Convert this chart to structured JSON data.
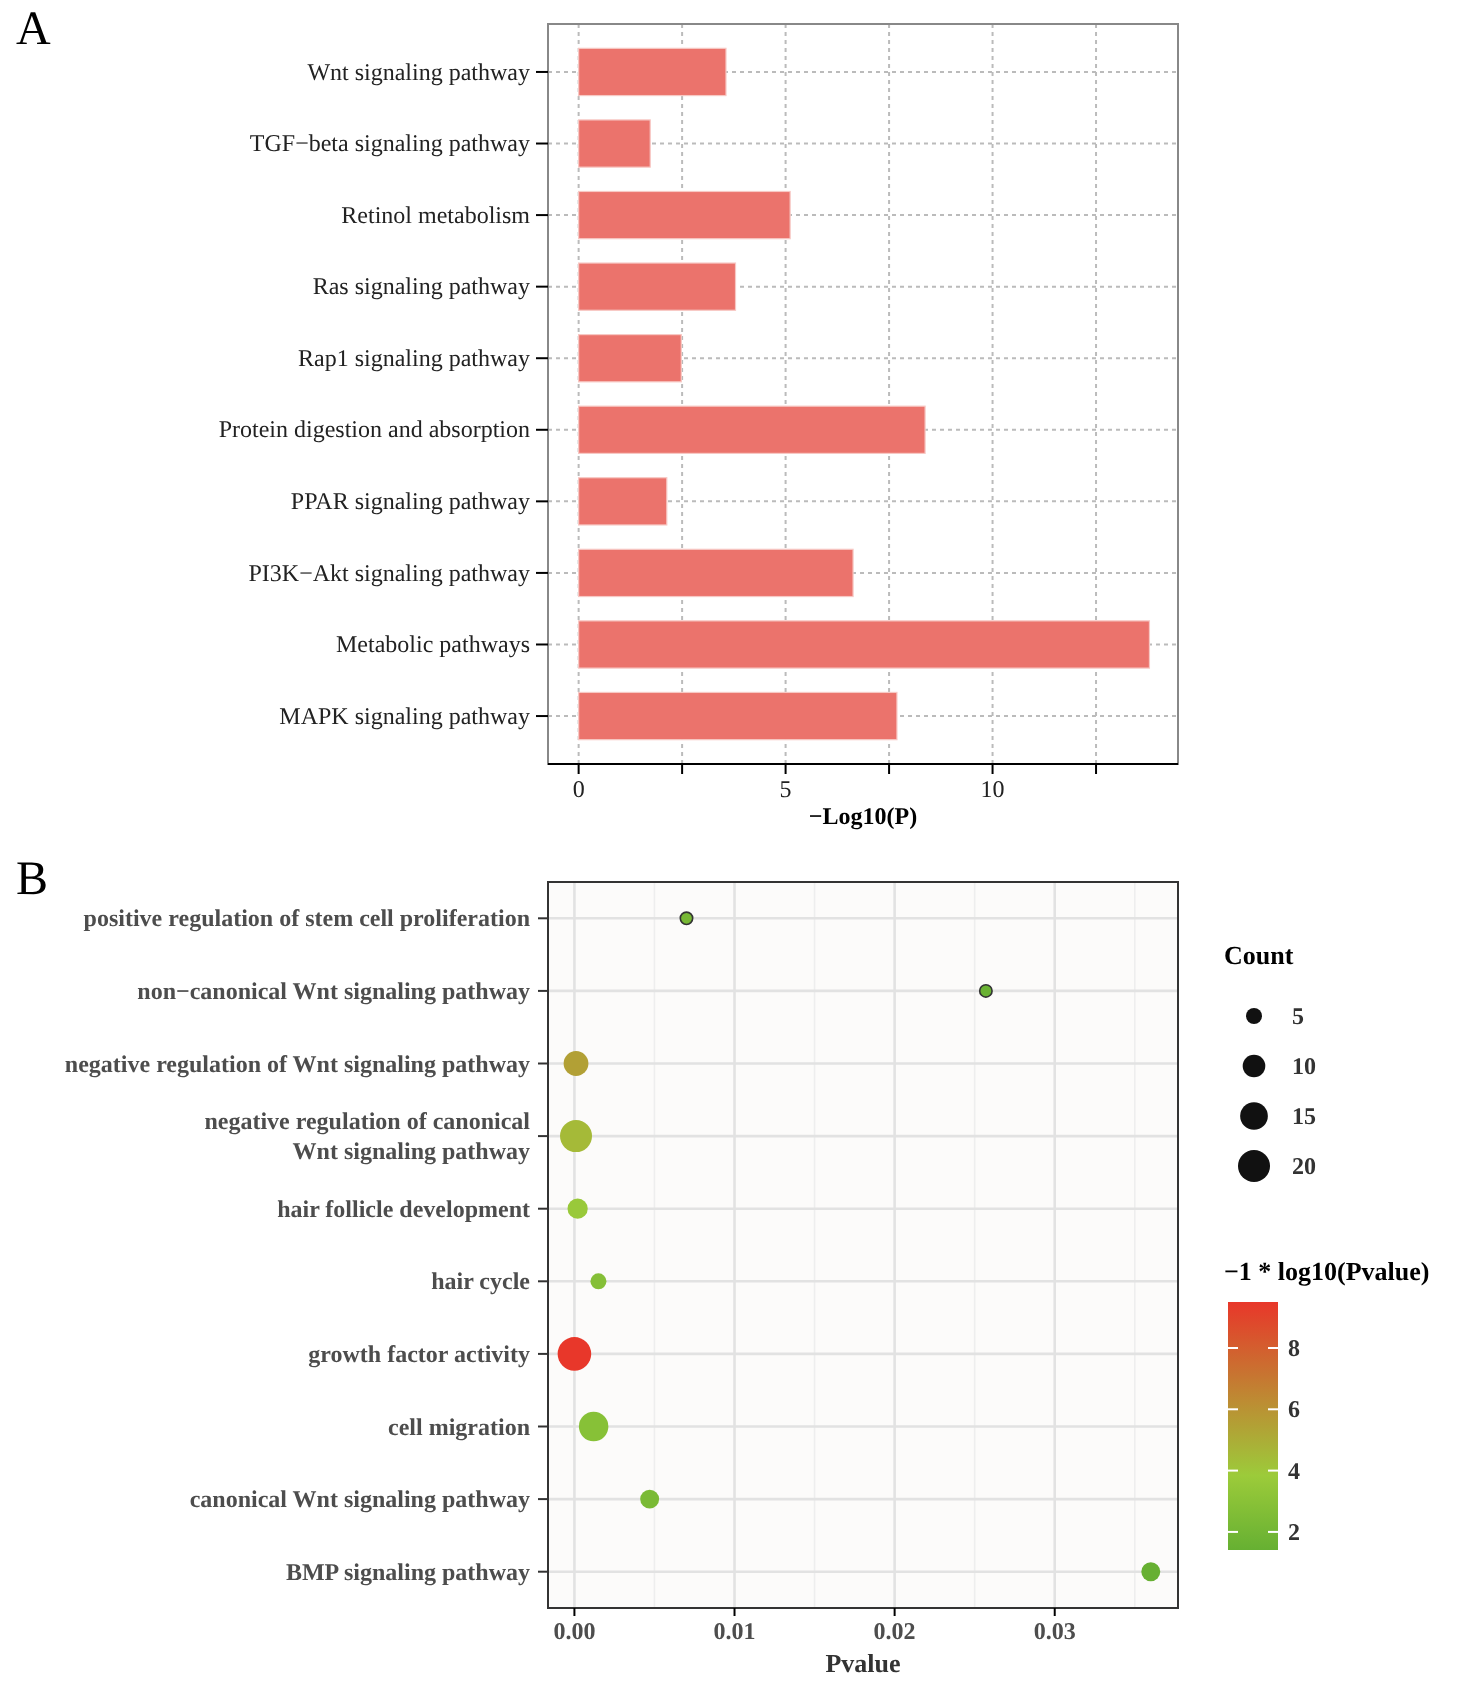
{
  "chart_data": [
    {
      "type": "bar",
      "orientation": "horizontal",
      "title": "A",
      "xlabel": "−Log10(P)",
      "categories": [
        "Wnt signaling pathway",
        "TGF−beta signaling pathway",
        "Retinol metabolism",
        "Ras signaling pathway",
        "Rap1 signaling pathway",
        "Protein digestion and absorption",
        "PPAR signaling pathway",
        "PI3K−Akt signaling pathway",
        "Metabolic pathways",
        "MAPK signaling pathway"
      ],
      "values": [
        3.56,
        1.73,
        5.11,
        3.79,
        2.48,
        8.37,
        2.13,
        6.63,
        13.79,
        7.69
      ],
      "color": "#eb736c",
      "xlim": [
        -0.74,
        14.48
      ],
      "xticks": [
        0,
        {
          "value": 2.5,
          "label": null
        },
        5,
        {
          "value": 7.5,
          "label": null
        },
        10,
        {
          "value": 12.5,
          "label": null
        }
      ],
      "grid": true,
      "line_style": "dotted"
    },
    {
      "type": "bubble",
      "title": "B",
      "xlabel": "Pvalue",
      "legend_title": "Count",
      "clabel": "−1 * log10(Pvalue)",
      "categories": [
        "positive regulation of stem cell proliferation",
        "non−canonical Wnt signaling pathway",
        "negative regulation of Wnt signaling pathway",
        "negative regulation of canonical\nWnt signaling pathway",
        "hair follicle development",
        "hair cycle",
        "growth factor activity",
        "cell migration",
        "canonical Wnt signaling pathway",
        "BMP signaling pathway"
      ],
      "orientation": "horizontal",
      "values": [
        0.007,
        0.0257,
        0.0001,
        0.0001,
        0.0002,
        0.0015,
        0.0,
        0.0012,
        0.0047,
        0.036
      ],
      "sizes": [
        3,
        3,
        12,
        20,
        8,
        5,
        22,
        17,
        7,
        7
      ],
      "cvalues": [
        2.16,
        1.59,
        5.5,
        4.5,
        3.7,
        2.8,
        9.5,
        2.9,
        2.3,
        1.44
      ],
      "size_legend": [
        5,
        10,
        15,
        20
      ],
      "clim": [
        1.41,
        9.5
      ],
      "cticks": [
        2,
        4,
        6,
        8
      ],
      "xlim": [
        -0.00165,
        0.0377
      ],
      "xticks": [
        {
          "value": 0,
          "label": "0.00"
        },
        {
          "value": 0.005,
          "label": null
        },
        {
          "value": 0.01,
          "label": "0.01"
        },
        {
          "value": 0.015,
          "label": null
        },
        {
          "value": 0.02,
          "label": "0.02"
        },
        {
          "value": 0.025,
          "label": null
        },
        {
          "value": 0.03,
          "label": "0.03"
        },
        {
          "value": 0.035,
          "label": null
        }
      ],
      "grid": true,
      "marker": "circle"
    }
  ]
}
